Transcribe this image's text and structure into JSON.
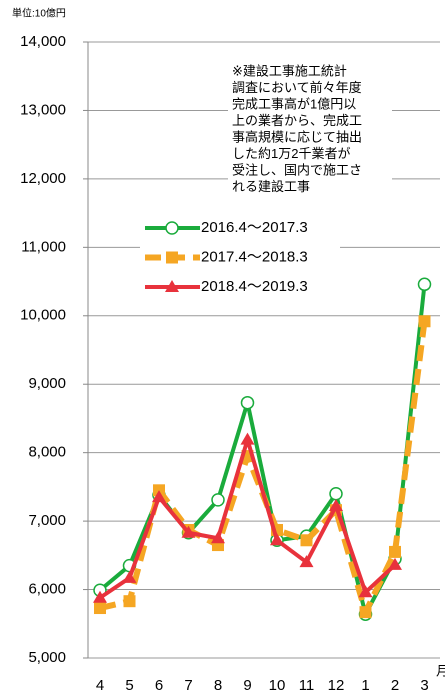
{
  "chart_data": {
    "type": "line",
    "unit_label": "単位:10億円",
    "x_unit": "月",
    "categories": [
      "4",
      "5",
      "6",
      "7",
      "8",
      "9",
      "10",
      "11",
      "12",
      "1",
      "2",
      "3"
    ],
    "series": [
      {
        "name": "2016.4〜2017.3",
        "color": "#1aab3c",
        "marker": "circle",
        "line_style": "solid",
        "values": [
          5990,
          6350,
          7380,
          6830,
          7310,
          8730,
          6720,
          6780,
          7400,
          5640,
          6450,
          10460
        ]
      },
      {
        "name": "2017.4〜2018.3",
        "color": "#f5a623",
        "marker": "square",
        "line_style": "dashed",
        "values": [
          5730,
          5830,
          7450,
          6870,
          6650,
          7950,
          6870,
          6720,
          7160,
          5670,
          6550,
          9920
        ]
      },
      {
        "name": "2018.4〜2019.3",
        "color": "#e8323c",
        "marker": "triangle",
        "line_style": "solid",
        "values": [
          5880,
          6170,
          7350,
          6830,
          6750,
          8190,
          6720,
          6400,
          7220,
          5960,
          6360,
          null
        ]
      }
    ],
    "ylim": [
      5000,
      14000
    ],
    "yticks": [
      {
        "value": 5000,
        "label": "5,000"
      },
      {
        "value": 6000,
        "label": "6,000"
      },
      {
        "value": 7000,
        "label": "7,000"
      },
      {
        "value": 8000,
        "label": "8,000"
      },
      {
        "value": 9000,
        "label": "9,000"
      },
      {
        "value": 10000,
        "label": "10,000"
      },
      {
        "value": 11000,
        "label": "11,000"
      },
      {
        "value": 12000,
        "label": "12,000"
      },
      {
        "value": 13000,
        "label": "13,000"
      },
      {
        "value": 14000,
        "label": "14,000"
      }
    ],
    "grid": true,
    "annotation": [
      "※建設工事施工統計",
      "調査において前々年度",
      "完成工事高が1億円以",
      "上の業者から、完成工",
      "事高規模に応じて抽出",
      "した約1万2千業者が",
      "受注し、国内で施工さ",
      "れる建設工事"
    ]
  }
}
